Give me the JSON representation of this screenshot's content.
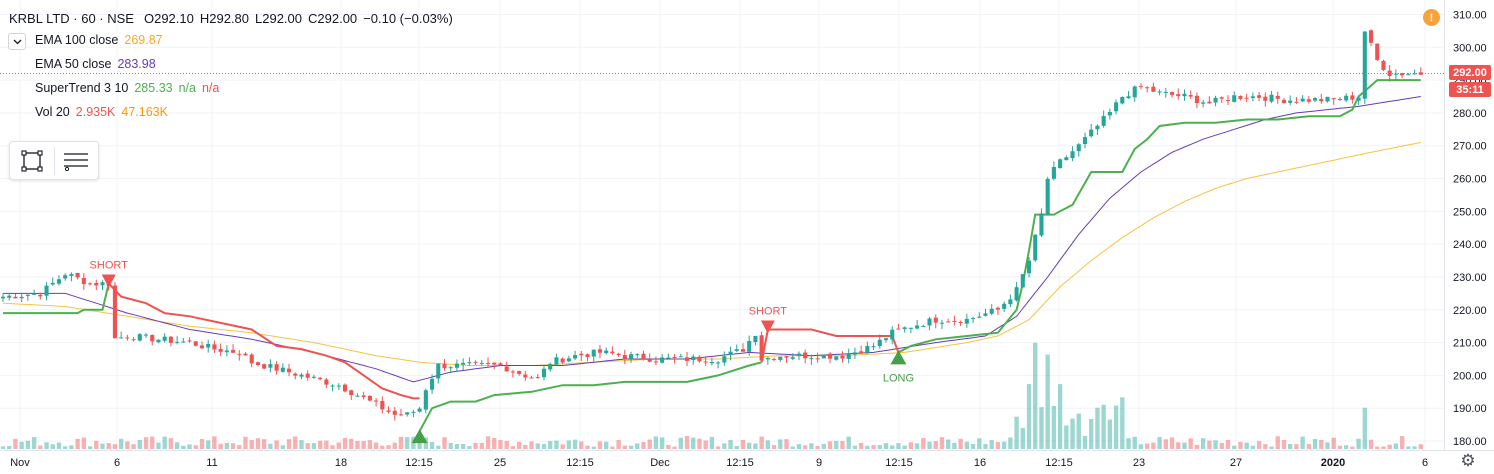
{
  "header": {
    "symbol": "KRBL LTD · 60 · NSE",
    "open": "O292.10",
    "high": "H292.80",
    "low": "L292.00",
    "close": "C292.00",
    "change": "−0.10 (−0.03%)"
  },
  "indicators": [
    {
      "name": "EMA 100 close",
      "value": "269.87",
      "value2": "",
      "value3": "",
      "color": "#f6c343"
    },
    {
      "name": "EMA 50 close",
      "value": "283.98",
      "value2": "",
      "value3": "",
      "color": "#673ab7"
    },
    {
      "name": "SuperTrend 3 10",
      "value": "285.33",
      "value2": "n/a",
      "value3": "n/a",
      "color": "#4caf50",
      "color2": "#ef5350"
    },
    {
      "name": "Vol 20",
      "value": "2.935K",
      "value2": "47.163K",
      "value3": "",
      "color": "#ef5350",
      "color2": "#ff9800"
    }
  ],
  "toolbar": {
    "tools": [
      {
        "icon": "rectangle-select-icon"
      },
      {
        "icon": "object-tree-icon"
      }
    ]
  },
  "icons": {
    "warning": "!",
    "collapse": "chevron-down-icon",
    "settings": "⚙"
  },
  "price_badges": {
    "last_price": "292.00",
    "countdown": "35:11"
  },
  "chart_data": {
    "type": "candlestick",
    "ylim": [
      177,
      313
    ],
    "y_ticks": [
      "310.00",
      "300.00",
      "290.00",
      "280.00",
      "270.00",
      "260.00",
      "250.00",
      "240.00",
      "230.00",
      "220.00",
      "210.00",
      "200.00",
      "190.00",
      "180.00"
    ],
    "x_ticks": [
      "Nov",
      "6",
      "11",
      "18",
      "12:15",
      "25",
      "12:15",
      "Dec",
      "12:15",
      "9",
      "12:15",
      "16",
      "12:15",
      "23",
      "27",
      "2020",
      "6"
    ],
    "last_price": 292.0,
    "colors": {
      "up": "#26a69a",
      "down": "#ef5350",
      "ema100": "#f6c343",
      "ema50": "#673ab7",
      "st_up": "#4caf50",
      "st_down": "#ef5350"
    },
    "price_path": [
      [
        0,
        224
      ],
      [
        6,
        225
      ],
      [
        10,
        231
      ],
      [
        14,
        228
      ],
      [
        17,
        228
      ],
      [
        17.5,
        211
      ],
      [
        20,
        212
      ],
      [
        25,
        211
      ],
      [
        30,
        210
      ],
      [
        34,
        208
      ],
      [
        38,
        207
      ],
      [
        40,
        204
      ],
      [
        42,
        203
      ],
      [
        46,
        201
      ],
      [
        50,
        199
      ],
      [
        54,
        197
      ],
      [
        58,
        193
      ],
      [
        61,
        190
      ],
      [
        63,
        188
      ],
      [
        65,
        188
      ],
      [
        67,
        190
      ],
      [
        68,
        196
      ],
      [
        70,
        203
      ],
      [
        75,
        203
      ],
      [
        80,
        203
      ],
      [
        84,
        200
      ],
      [
        86,
        199
      ],
      [
        88,
        204
      ],
      [
        92,
        206
      ],
      [
        96,
        207
      ],
      [
        100,
        206
      ],
      [
        105,
        205
      ],
      [
        110,
        205
      ],
      [
        115,
        205
      ],
      [
        119,
        208
      ],
      [
        121,
        213
      ],
      [
        122,
        205
      ],
      [
        125,
        206
      ],
      [
        130,
        206
      ],
      [
        135,
        206
      ],
      [
        140,
        209
      ],
      [
        143,
        213
      ],
      [
        146,
        215
      ],
      [
        150,
        217
      ],
      [
        155,
        217
      ],
      [
        160,
        220
      ],
      [
        163,
        226
      ],
      [
        165,
        235
      ],
      [
        167,
        249
      ],
      [
        168,
        260
      ],
      [
        170,
        265
      ],
      [
        173,
        270
      ],
      [
        176,
        276
      ],
      [
        178,
        280
      ],
      [
        180,
        285
      ],
      [
        183,
        288
      ],
      [
        186,
        286
      ],
      [
        190,
        285
      ],
      [
        194,
        283
      ],
      [
        198,
        285
      ],
      [
        202,
        285
      ],
      [
        206,
        284
      ],
      [
        210,
        284
      ],
      [
        214,
        284
      ],
      [
        218,
        285
      ],
      [
        219,
        305
      ],
      [
        221,
        296
      ],
      [
        223,
        292
      ],
      [
        226,
        292
      ],
      [
        228,
        292
      ]
    ],
    "ema100": [
      [
        0,
        222
      ],
      [
        10,
        221
      ],
      [
        20,
        218
      ],
      [
        30,
        215
      ],
      [
        40,
        213
      ],
      [
        50,
        210
      ],
      [
        60,
        206
      ],
      [
        67,
        204
      ],
      [
        75,
        203
      ],
      [
        85,
        203
      ],
      [
        95,
        204
      ],
      [
        105,
        205
      ],
      [
        115,
        205
      ],
      [
        125,
        206
      ],
      [
        135,
        206
      ],
      [
        145,
        207
      ],
      [
        155,
        210
      ],
      [
        160,
        212
      ],
      [
        165,
        217
      ],
      [
        170,
        227
      ],
      [
        175,
        235
      ],
      [
        180,
        242
      ],
      [
        185,
        248
      ],
      [
        190,
        253
      ],
      [
        195,
        257
      ],
      [
        200,
        260
      ],
      [
        205,
        262
      ],
      [
        210,
        264
      ],
      [
        215,
        266
      ],
      [
        220,
        268
      ],
      [
        228,
        271
      ]
    ],
    "ema50": [
      [
        0,
        225
      ],
      [
        10,
        225
      ],
      [
        20,
        219
      ],
      [
        30,
        214
      ],
      [
        40,
        211
      ],
      [
        50,
        207
      ],
      [
        60,
        202
      ],
      [
        66,
        198
      ],
      [
        72,
        201
      ],
      [
        80,
        203
      ],
      [
        90,
        203
      ],
      [
        100,
        205
      ],
      [
        110,
        205
      ],
      [
        120,
        207
      ],
      [
        130,
        206
      ],
      [
        140,
        207
      ],
      [
        150,
        210
      ],
      [
        158,
        212
      ],
      [
        163,
        218
      ],
      [
        168,
        230
      ],
      [
        173,
        243
      ],
      [
        178,
        254
      ],
      [
        183,
        262
      ],
      [
        188,
        268
      ],
      [
        193,
        272
      ],
      [
        198,
        275
      ],
      [
        203,
        278
      ],
      [
        208,
        280
      ],
      [
        213,
        281
      ],
      [
        218,
        282
      ],
      [
        228,
        285
      ]
    ],
    "supertrend_segments": [
      {
        "dir": "up",
        "points": [
          [
            0,
            219
          ],
          [
            10,
            219
          ],
          [
            12,
            219
          ],
          [
            13,
            220
          ],
          [
            16,
            220
          ],
          [
            17,
            228
          ]
        ]
      },
      {
        "dir": "down",
        "points": [
          [
            17,
            228
          ],
          [
            19,
            224
          ],
          [
            23,
            222
          ],
          [
            26,
            219
          ],
          [
            30,
            218
          ],
          [
            35,
            216
          ],
          [
            40,
            214
          ],
          [
            44,
            209
          ],
          [
            48,
            208
          ],
          [
            52,
            206
          ],
          [
            55,
            204
          ],
          [
            58,
            200
          ],
          [
            61,
            196
          ],
          [
            64,
            194
          ],
          [
            66,
            193
          ],
          [
            67,
            193
          ]
        ]
      },
      {
        "dir": "up",
        "points": [
          [
            67,
            183
          ],
          [
            69,
            190
          ],
          [
            72,
            192
          ],
          [
            76,
            192
          ],
          [
            79,
            194
          ],
          [
            85,
            195
          ],
          [
            90,
            197
          ],
          [
            95,
            197
          ],
          [
            100,
            198
          ],
          [
            105,
            198
          ],
          [
            110,
            198
          ],
          [
            115,
            200
          ],
          [
            120,
            203
          ],
          [
            122,
            204
          ]
        ]
      },
      {
        "dir": "down",
        "points": [
          [
            122,
            204
          ],
          [
            123,
            214
          ],
          [
            130,
            214
          ],
          [
            134,
            212
          ],
          [
            140,
            212
          ],
          [
            143,
            212
          ],
          [
            144,
            207
          ]
        ]
      },
      {
        "dir": "up",
        "points": [
          [
            144,
            207
          ],
          [
            146,
            209
          ],
          [
            150,
            211
          ],
          [
            155,
            212
          ],
          [
            160,
            213
          ],
          [
            163,
            220
          ],
          [
            164,
            228
          ],
          [
            165,
            238
          ],
          [
            166,
            249
          ],
          [
            169,
            249
          ],
          [
            170,
            250
          ],
          [
            172,
            252
          ],
          [
            175,
            262
          ],
          [
            180,
            262
          ],
          [
            182,
            269
          ],
          [
            184,
            272
          ],
          [
            186,
            276
          ],
          [
            190,
            277
          ],
          [
            195,
            277
          ],
          [
            200,
            278
          ],
          [
            205,
            278
          ],
          [
            210,
            279
          ],
          [
            215,
            279
          ],
          [
            217,
            281
          ],
          [
            218,
            285
          ],
          [
            221,
            290
          ],
          [
            228,
            290
          ]
        ]
      }
    ],
    "signals": [
      {
        "type": "short",
        "label": "SHORT",
        "x": 17,
        "y": 228
      },
      {
        "type": "buy",
        "label": "",
        "x": 67,
        "y": 183
      },
      {
        "type": "short",
        "label": "SHORT",
        "x": 123,
        "y": 214
      },
      {
        "type": "long",
        "label": "LONG",
        "x": 144,
        "y": 207
      }
    ],
    "volume_spikes": [
      [
        65,
        0.1
      ],
      [
        165,
        0.55
      ],
      [
        166,
        0.9
      ],
      [
        168,
        0.8
      ],
      [
        170,
        0.55
      ],
      [
        173,
        0.3
      ],
      [
        176,
        0.35
      ],
      [
        178,
        0.25
      ],
      [
        219,
        0.35
      ]
    ]
  }
}
